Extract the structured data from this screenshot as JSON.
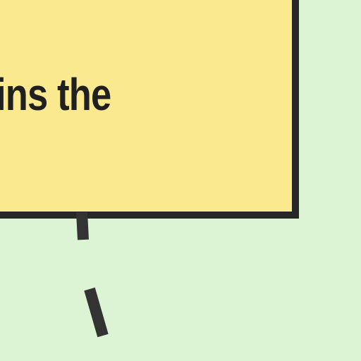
{
  "diagram": {
    "node": {
      "visible_text": "ins the"
    }
  },
  "colors": {
    "background": "#dcf4d4",
    "node_fill": "#fbe98f",
    "node_border": "#272727",
    "text": "#202020",
    "connector": "#333333"
  }
}
